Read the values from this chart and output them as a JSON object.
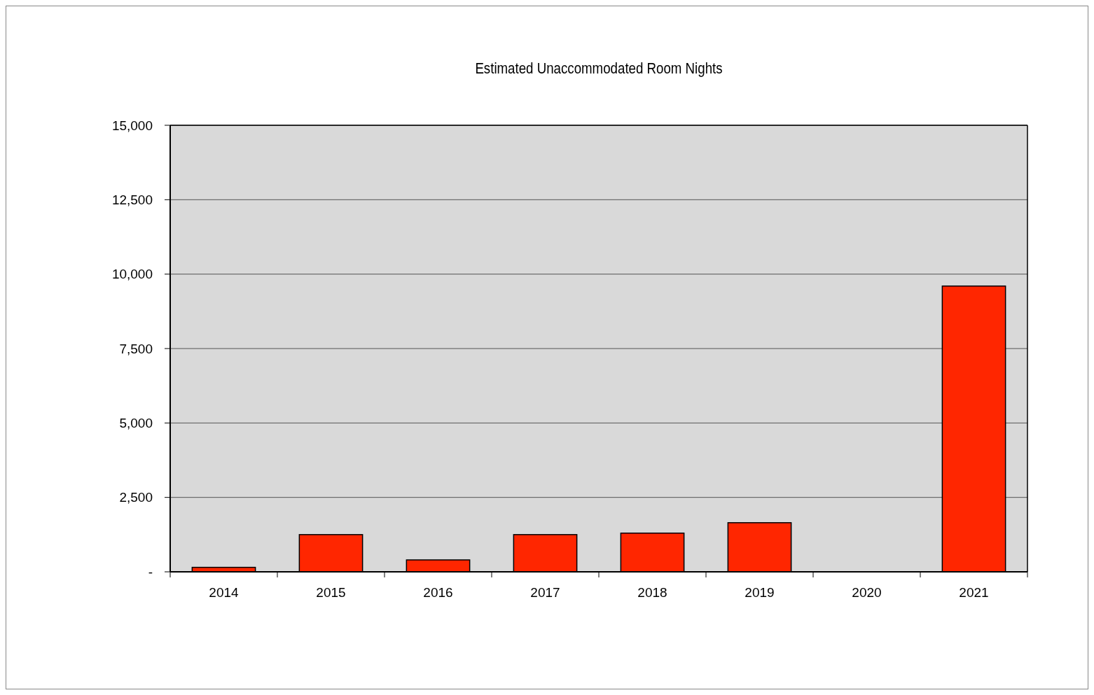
{
  "chart_data": {
    "type": "bar",
    "title": "Estimated Unaccommodated Room Nights",
    "categories": [
      "2014",
      "2015",
      "2016",
      "2017",
      "2018",
      "2019",
      "2020",
      "2021"
    ],
    "values": [
      150,
      1250,
      400,
      1250,
      1300,
      1650,
      0,
      9600
    ],
    "color": "#ff2600",
    "ylim": [
      0,
      15000
    ],
    "yticks": [
      {
        "value": 0,
        "label": "-"
      },
      {
        "value": 2500,
        "label": "2,500"
      },
      {
        "value": 5000,
        "label": "5,000"
      },
      {
        "value": 7500,
        "label": "7,500"
      },
      {
        "value": 10000,
        "label": "10,000"
      },
      {
        "value": 12500,
        "label": "12,500"
      },
      {
        "value": 15000,
        "label": "15,000"
      }
    ],
    "grid": "y"
  }
}
